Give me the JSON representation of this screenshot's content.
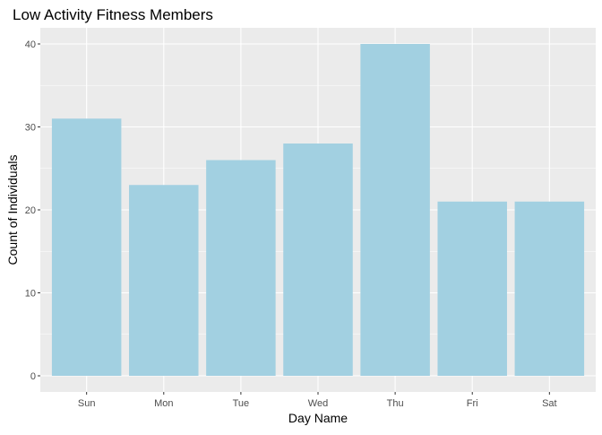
{
  "chart_data": {
    "type": "bar",
    "title": "Low Activity Fitness Members",
    "xlabel": "Day Name",
    "ylabel": "Count of Individuals",
    "categories": [
      "Sun",
      "Mon",
      "Tue",
      "Wed",
      "Thu",
      "Fri",
      "Sat"
    ],
    "values": [
      31,
      23,
      26,
      28,
      40,
      21,
      21
    ],
    "ylim": [
      0,
      42
    ],
    "yticks": [
      0,
      10,
      20,
      30,
      40
    ],
    "ytick_labels": [
      "0",
      "10",
      "20",
      "30",
      "40"
    ],
    "grid": true,
    "legend": "none",
    "colors": {
      "bar": "#a2d0e1",
      "panel": "#ebebeb",
      "grid_major": "#ffffff",
      "text": "#000000",
      "tick_text": "#4d4d4d",
      "tick_mark": "#333333"
    }
  }
}
